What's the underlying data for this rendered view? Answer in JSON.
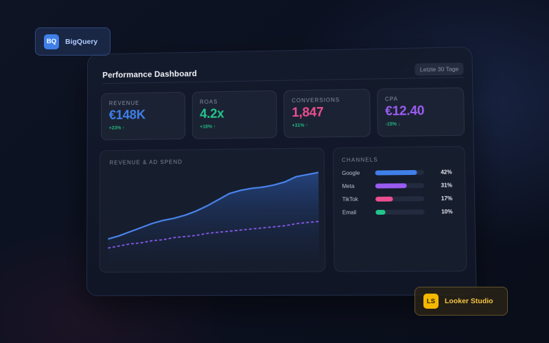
{
  "badges": {
    "bigquery": {
      "icon": "BQ",
      "label": "BigQuery",
      "color": "#3f7fe8"
    },
    "looker": {
      "icon": "LS",
      "label": "Looker Studio",
      "color": "#f5b800"
    }
  },
  "dashboard": {
    "title": "Performance Dashboard",
    "date_range": "Letzte 30 Tage",
    "kpis": [
      {
        "label": "REVENUE",
        "value": "€148K",
        "delta": "+23% ↑",
        "color": "#3f7fe8"
      },
      {
        "label": "ROAS",
        "value": "4.2x",
        "delta": "+18% ↑",
        "color": "#22c58b"
      },
      {
        "label": "CONVERSIONS",
        "value": "1,847",
        "delta": "+31% ↑",
        "color": "#ec4f8f"
      },
      {
        "label": "CPA",
        "value": "€12.40",
        "delta": "-15% ↓",
        "color": "#9a5cf0"
      }
    ],
    "chart": {
      "title": "REVENUE & AD SPEND"
    },
    "channels": {
      "title": "CHANNELS",
      "items": [
        {
          "name": "Google",
          "pct": "42%",
          "fill": 85,
          "color": "#3f7fe8"
        },
        {
          "name": "Meta",
          "pct": "31%",
          "fill": 64,
          "color": "#9a5cf0"
        },
        {
          "name": "TikTok",
          "pct": "17%",
          "fill": 35,
          "color": "#ec4f8f"
        },
        {
          "name": "Email",
          "pct": "10%",
          "fill": 20,
          "color": "#22c58b"
        }
      ]
    }
  },
  "chart_data": {
    "type": "area",
    "title": "REVENUE & AD SPEND",
    "xlabel": "",
    "ylabel": "",
    "x": [
      1,
      2,
      3,
      4,
      5,
      6,
      7,
      8,
      9,
      10,
      11,
      12,
      13,
      14,
      15,
      16,
      17,
      18,
      19,
      20
    ],
    "series": [
      {
        "name": "Revenue",
        "style": "solid-area",
        "color": "#3f7fe8",
        "values": [
          15,
          18,
          22,
          26,
          30,
          33,
          35,
          38,
          42,
          47,
          53,
          59,
          62,
          64,
          65,
          67,
          70,
          75,
          77,
          79
        ]
      },
      {
        "name": "Ad Spend",
        "style": "dashed",
        "color": "#8a5cf0",
        "values": [
          6,
          8,
          10,
          11,
          13,
          14,
          16,
          17,
          18,
          20,
          21,
          22,
          23,
          24,
          25,
          26,
          27,
          29,
          30,
          31
        ]
      }
    ],
    "ylim": [
      0,
      100
    ],
    "grid": false,
    "legend": "none"
  }
}
